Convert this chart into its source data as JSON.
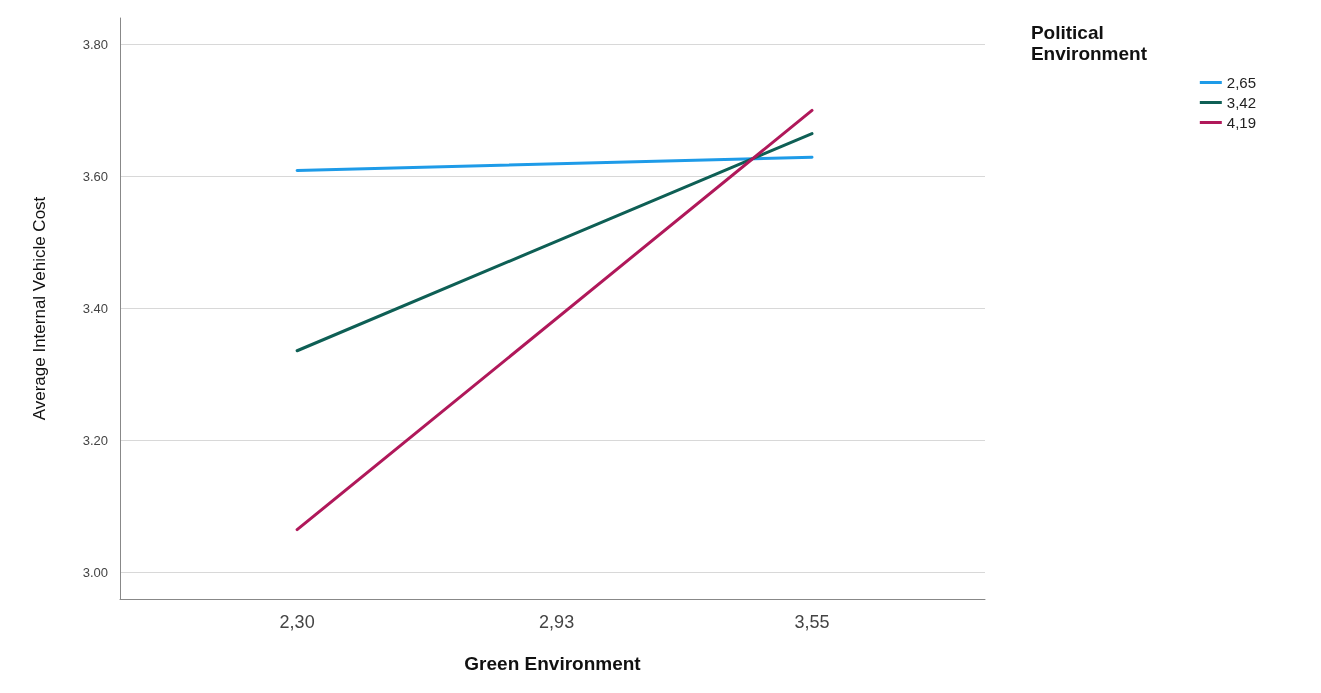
{
  "chart_data": {
    "type": "line",
    "xlabel": "Green Environment",
    "ylabel": "Average Internal Vehicle Cost",
    "legend_title": "Political Environment",
    "x": [
      2.3,
      3.55
    ],
    "series": [
      {
        "name": "2,65",
        "color": "#1e9be8",
        "values": [
          3.609,
          3.629
        ]
      },
      {
        "name": "3,42",
        "color": "#0e5f55",
        "values": [
          3.336,
          3.665
        ]
      },
      {
        "name": "4,19",
        "color": "#b0185a",
        "values": [
          3.065,
          3.7
        ]
      }
    ],
    "xlim": [
      1.87,
      3.97
    ],
    "xticks": [
      {
        "value": 2.3,
        "label": "2,30"
      },
      {
        "value": 2.93,
        "label": "2,93"
      },
      {
        "value": 3.55,
        "label": "3,55"
      }
    ],
    "ylim": [
      2.96,
      3.84
    ],
    "yticks": [
      {
        "value": 3.0,
        "label": "3.00"
      },
      {
        "value": 3.2,
        "label": "3.20"
      },
      {
        "value": 3.4,
        "label": "3.40"
      },
      {
        "value": 3.6,
        "label": "3.60"
      },
      {
        "value": 3.8,
        "label": "3.80"
      }
    ],
    "grid": "y",
    "legend": "top right",
    "marker": "none",
    "line_style": "solid"
  }
}
